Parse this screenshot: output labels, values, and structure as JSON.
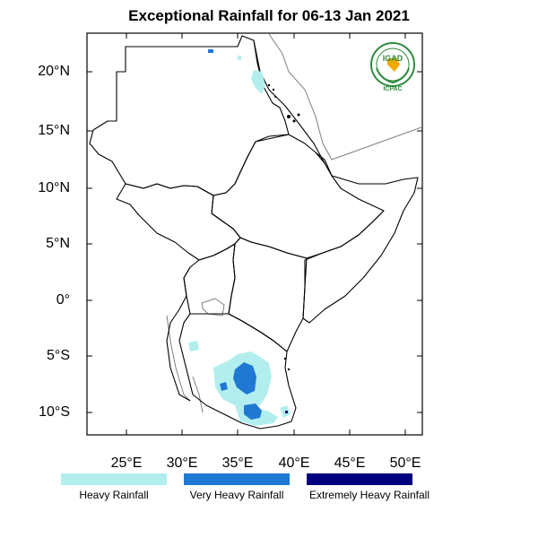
{
  "title": "Exceptional Rainfall for 06-13 Jan 2021",
  "axes": {
    "y_labels": [
      "20°N",
      "15°N",
      "10°N",
      "5°N",
      "0°",
      "5°S",
      "10°S"
    ],
    "x_labels": [
      "25°E",
      "30°E",
      "35°E",
      "40°E",
      "45°E",
      "50°E"
    ]
  },
  "legend": {
    "items": [
      {
        "label": "Heavy Rainfall",
        "color": "#b2eeee"
      },
      {
        "label": "Very Heavy Rainfall",
        "color": "#1f78d1"
      },
      {
        "label": "Extremely Heavy Rainfall",
        "color": "#000080"
      }
    ]
  },
  "logo": {
    "name": "IGAD",
    "caption": "ICPAC",
    "colors": {
      "ring": "#2e8b3d",
      "text": "#2e8b3d",
      "map": "#f2a900"
    }
  },
  "colors": {
    "heavy": "#b2eeee",
    "very_heavy": "#1f78d1",
    "extremely_heavy": "#000080",
    "boundary": "#000000",
    "outer_boundary": "#808080"
  }
}
